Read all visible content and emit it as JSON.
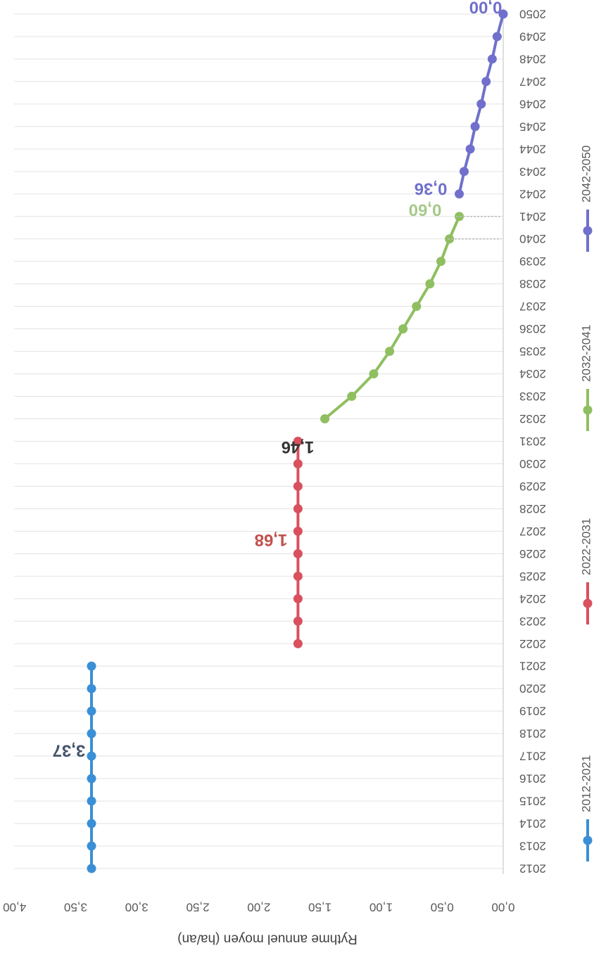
{
  "chart_data": {
    "type": "line",
    "orientation": "rotated-180",
    "ylabel": "Rythme annuel moyen (ha/an)",
    "xlabel": "",
    "ylim": [
      0,
      4
    ],
    "yticks": [
      "0,00",
      "0,50",
      "1,00",
      "1,50",
      "2,00",
      "2,50",
      "3,00",
      "3,50",
      "4,00"
    ],
    "categories": [
      "2012",
      "2013",
      "2014",
      "2015",
      "2016",
      "2017",
      "2018",
      "2019",
      "2020",
      "2021",
      "2022",
      "2023",
      "2024",
      "2025",
      "2026",
      "2027",
      "2028",
      "2029",
      "2030",
      "2031",
      "2032",
      "2033",
      "2034",
      "2035",
      "2036",
      "2037",
      "2038",
      "2039",
      "2040",
      "2041",
      "2042",
      "2043",
      "2044",
      "2045",
      "2046",
      "2047",
      "2048",
      "2049",
      "2050"
    ],
    "grid": true,
    "legend_position": "bottom",
    "series": [
      {
        "name": "2012-2021",
        "color": "#3a8fd6",
        "x": [
          "2012",
          "2013",
          "2014",
          "2015",
          "2016",
          "2017",
          "2018",
          "2019",
          "2020",
          "2021"
        ],
        "values": [
          3.37,
          3.37,
          3.37,
          3.37,
          3.37,
          3.37,
          3.37,
          3.37,
          3.37,
          3.37
        ],
        "label": "3,37"
      },
      {
        "name": "2022-2031",
        "color": "#d9505e",
        "x": [
          "2022",
          "2023",
          "2024",
          "2025",
          "2026",
          "2027",
          "2028",
          "2029",
          "2030",
          "2031"
        ],
        "values": [
          1.68,
          1.68,
          1.68,
          1.68,
          1.68,
          1.68,
          1.68,
          1.68,
          1.68,
          1.68
        ],
        "label": "1,68"
      },
      {
        "name": "2032-2041",
        "color": "#8fbf60",
        "x": [
          "2032",
          "2033",
          "2034",
          "2035",
          "2036",
          "2037",
          "2038",
          "2039",
          "2040",
          "2041"
        ],
        "values": [
          1.46,
          1.24,
          1.06,
          0.93,
          0.82,
          0.71,
          0.6,
          0.51,
          0.44,
          0.36
        ],
        "label": "0,60"
      },
      {
        "name": "2042-2050",
        "color": "#7070cc",
        "x": [
          "2042",
          "2043",
          "2044",
          "2045",
          "2046",
          "2047",
          "2048",
          "2049",
          "2050"
        ],
        "values": [
          0.36,
          0.32,
          0.27,
          0.23,
          0.18,
          0.14,
          0.09,
          0.05,
          0.0
        ],
        "label": "0,00"
      }
    ],
    "extra_labels": [
      {
        "text": "1,46",
        "x": "2031",
        "y": 1.68,
        "color": "#333333"
      },
      {
        "text": "0,36",
        "x": "2041",
        "y": 0.36,
        "color": "#7070cc"
      }
    ]
  }
}
